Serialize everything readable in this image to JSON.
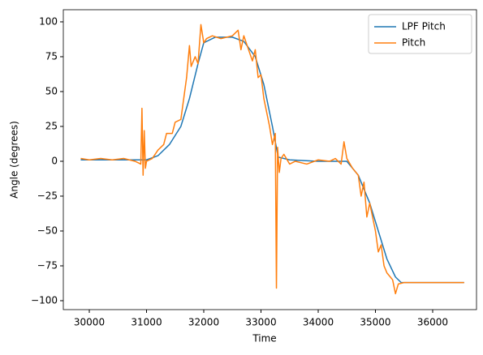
{
  "chart_data": {
    "type": "line",
    "xlabel": "Time",
    "ylabel": "Angle (degrees)",
    "xlim": [
      29546,
      36766
    ],
    "ylim": [
      -106.4,
      108.7
    ],
    "xticks": [
      30000,
      31000,
      32000,
      33000,
      34000,
      35000,
      36000
    ],
    "yticks": [
      {
        "value": -100,
        "label": "−100"
      },
      {
        "value": -75,
        "label": "−75"
      },
      {
        "value": -50,
        "label": "−50"
      },
      {
        "value": -25,
        "label": "−25"
      },
      0,
      25,
      50,
      75,
      100
    ],
    "legend": "upper right",
    "grid": false,
    "series": [
      {
        "name": "LPF Pitch",
        "color": "#1f77b4",
        "x": [
          29850,
          30500,
          31000,
          31200,
          31400,
          31600,
          31750,
          31900,
          32000,
          32200,
          32500,
          32700,
          32900,
          33050,
          33200,
          33300,
          33500,
          34000,
          34500,
          34700,
          34900,
          35050,
          35200,
          35350,
          35450,
          36000,
          36550
        ],
        "values": [
          1,
          1,
          1,
          4,
          12,
          25,
          45,
          70,
          85,
          89,
          89,
          86,
          75,
          55,
          25,
          3,
          1,
          0,
          0,
          -10,
          -30,
          -50,
          -70,
          -83,
          -87,
          -87,
          -87
        ]
      },
      {
        "name": "Pitch",
        "color": "#ff7f0e",
        "x": [
          29850,
          30000,
          30200,
          30400,
          30600,
          30800,
          30900,
          30920,
          30940,
          30960,
          30980,
          31000,
          31100,
          31200,
          31300,
          31350,
          31450,
          31500,
          31600,
          31650,
          31700,
          31750,
          31780,
          31850,
          31900,
          31950,
          32000,
          32050,
          32150,
          32300,
          32500,
          32600,
          32650,
          32700,
          32800,
          32850,
          32900,
          32950,
          33000,
          33050,
          33100,
          33150,
          33200,
          33250,
          33270,
          33290,
          33320,
          33350,
          33400,
          33500,
          33600,
          33800,
          34000,
          34200,
          34300,
          34400,
          34450,
          34500,
          34600,
          34700,
          34750,
          34800,
          34850,
          34900,
          35000,
          35050,
          35100,
          35150,
          35200,
          35300,
          35350,
          35400,
          35500,
          36000,
          36550
        ],
        "values": [
          2,
          1,
          2,
          1,
          2,
          0,
          -2,
          38,
          -10,
          22,
          -5,
          0,
          2,
          8,
          12,
          20,
          20,
          28,
          30,
          45,
          60,
          83,
          68,
          75,
          70,
          98,
          85,
          88,
          90,
          88,
          90,
          94,
          80,
          90,
          78,
          72,
          80,
          60,
          62,
          45,
          35,
          25,
          12,
          20,
          -91,
          10,
          -8,
          2,
          5,
          -2,
          0,
          -2,
          1,
          0,
          2,
          -2,
          14,
          2,
          -5,
          -10,
          -25,
          -15,
          -40,
          -30,
          -50,
          -65,
          -60,
          -75,
          -80,
          -85,
          -95,
          -88,
          -87,
          -87,
          -87
        ]
      }
    ]
  }
}
